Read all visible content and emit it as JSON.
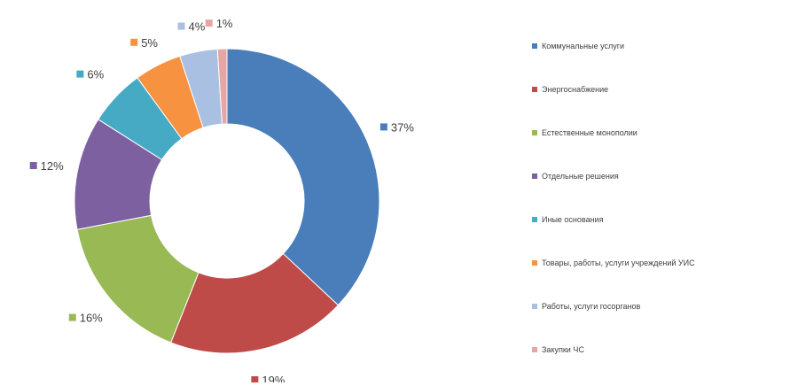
{
  "chart_data": {
    "type": "pie",
    "donut": true,
    "title": "",
    "legend_position": "right",
    "slices": [
      {
        "label": "Коммунальные услуги",
        "value": 37,
        "display": "37%",
        "color": "#4a7ebb"
      },
      {
        "label": "Энергоснабжение",
        "value": 19,
        "display": "19%",
        "color": "#be4b48"
      },
      {
        "label": "Естественные монополии",
        "value": 16,
        "display": "16%",
        "color": "#98b954"
      },
      {
        "label": "Отдельные решения",
        "value": 12,
        "display": "12%",
        "color": "#7d60a0"
      },
      {
        "label": "Иные основания",
        "value": 6,
        "display": "6%",
        "color": "#46aac5"
      },
      {
        "label": "Товары, работы, услуги учреждений УИС",
        "value": 5,
        "display": "5%",
        "color": "#f69240"
      },
      {
        "label": "Работы, услуги госорганов",
        "value": 4,
        "display": "4%",
        "color": "#a9c0e2"
      },
      {
        "label": "Закупки ЧС",
        "value": 1,
        "display": "1%",
        "color": "#e6a6a4"
      }
    ]
  }
}
